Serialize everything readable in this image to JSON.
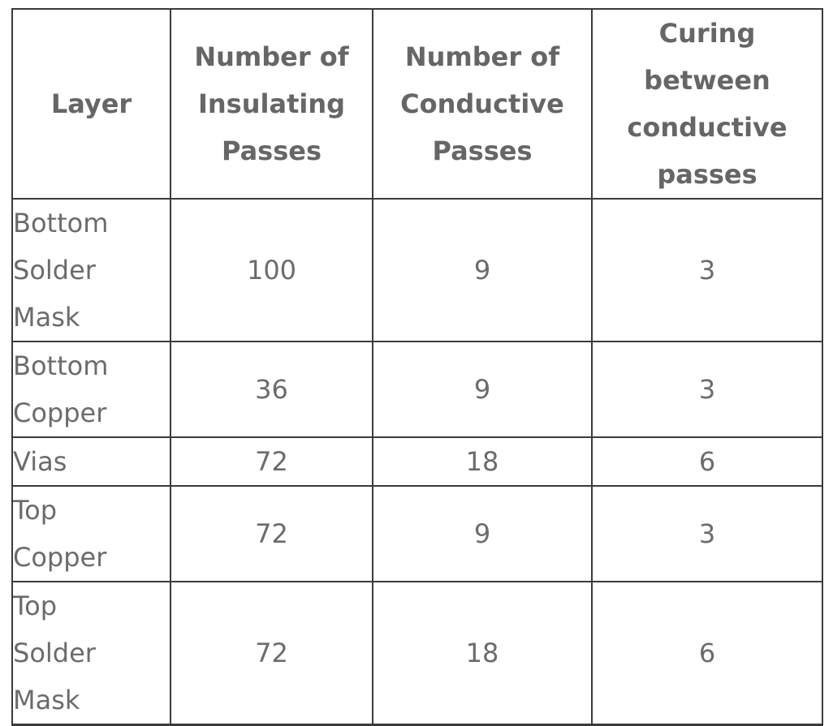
{
  "table": {
    "columns": [
      {
        "label": "Layer"
      },
      {
        "label": "Number of\nInsulating\nPasses"
      },
      {
        "label": "Number of\nConductive\nPasses"
      },
      {
        "label": "Curing\nbetween\nconductive\npasses"
      }
    ],
    "rows": [
      {
        "layer": "Bottom\nSolder\nMask",
        "insulating_passes": "100",
        "conductive_passes": "9",
        "curing_between": "3"
      },
      {
        "layer": "Bottom\nCopper",
        "insulating_passes": "36",
        "conductive_passes": "9",
        "curing_between": "3"
      },
      {
        "layer": "Vias",
        "insulating_passes": "72",
        "conductive_passes": "18",
        "curing_between": "6"
      },
      {
        "layer": "Top\nCopper",
        "insulating_passes": "72",
        "conductive_passes": "9",
        "curing_between": "3"
      },
      {
        "layer": "Top\nSolder\nMask",
        "insulating_passes": "72",
        "conductive_passes": "18",
        "curing_between": "6"
      }
    ]
  },
  "colors": {
    "border": "#3b3b3b",
    "header_text": "#666666",
    "body_text": "#6b6b6b",
    "background": "#ffffff"
  }
}
